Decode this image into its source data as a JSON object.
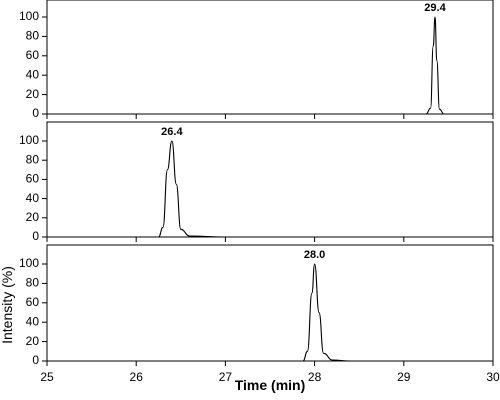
{
  "chart_data": {
    "type": "line",
    "xlabel": "Time (min)",
    "ylabel": "Intensity (%)",
    "xlim": [
      25,
      30
    ],
    "ylim": [
      0,
      100
    ],
    "x_ticks": [
      "25",
      "26",
      "27",
      "28",
      "29",
      "30"
    ],
    "y_ticks": [
      "0",
      "20",
      "40",
      "60",
      "80",
      "100"
    ],
    "grid": false,
    "legend": "none",
    "panels": [
      {
        "series": [
          {
            "x": [
              25.0,
              29.25,
              29.3,
              29.33,
              29.35,
              29.37,
              29.4,
              29.45,
              30.0
            ],
            "y": [
              0,
              0,
              6,
              70,
              100,
              55,
              5,
              0,
              0
            ]
          }
        ],
        "peak_label": "29.4",
        "peak_x": 29.35
      },
      {
        "series": [
          {
            "x": [
              26.25,
              26.3,
              26.35,
              26.4,
              26.45,
              26.5,
              26.6,
              27.0
            ],
            "y": [
              0,
              10,
              70,
              100,
              55,
              8,
              1,
              0
            ]
          }
        ],
        "peak_label": "26.4",
        "peak_x": 26.4
      },
      {
        "series": [
          {
            "x": [
              27.87,
              27.92,
              27.97,
              28.0,
              28.05,
              28.1,
              28.2,
              28.4
            ],
            "y": [
              0,
              10,
              70,
              100,
              50,
              8,
              1,
              0
            ]
          }
        ],
        "peak_label": "28.0",
        "peak_x": 28.0
      }
    ]
  }
}
